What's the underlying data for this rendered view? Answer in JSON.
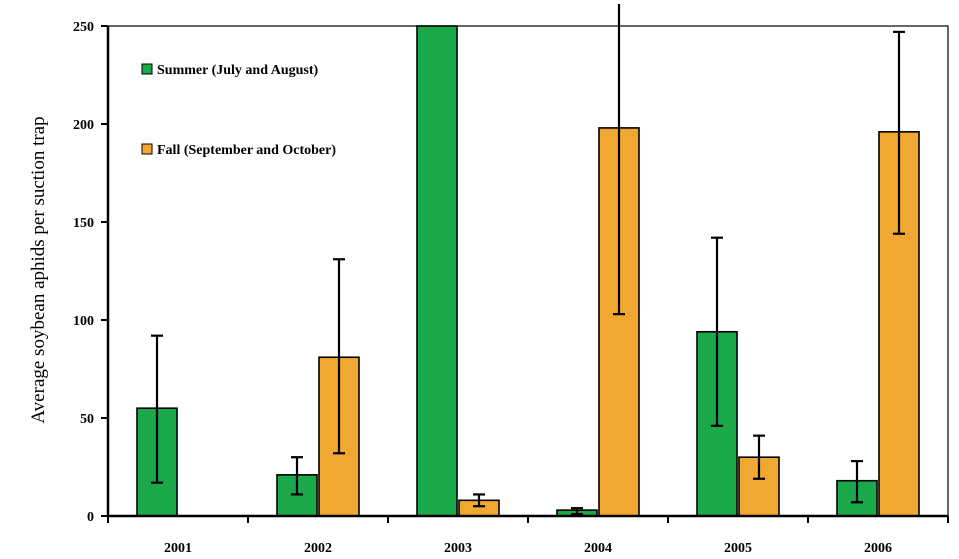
{
  "chart_data": {
    "type": "bar",
    "title": "",
    "xlabel": "",
    "ylabel": "Average soybean aphids per suction trap",
    "categories": [
      "2001",
      "2002",
      "2003",
      "2004",
      "2005",
      "2006"
    ],
    "ylim": [
      0,
      250
    ],
    "yticks": [
      0,
      50,
      100,
      150,
      200,
      250
    ],
    "grid": false,
    "legend_position": "top-left",
    "series": [
      {
        "name": "Summer (July and August)",
        "color": "#1aa84a",
        "values": [
          55,
          21,
          250,
          3,
          94,
          18
        ],
        "error_low": [
          17,
          11,
          250,
          1,
          46,
          7
        ],
        "error_high": [
          92,
          30,
          250,
          4,
          142,
          28
        ]
      },
      {
        "name": "Fall (September and October)",
        "color": "#f0a830",
        "values": [
          0,
          81,
          8,
          198,
          30,
          196
        ],
        "error_low": [
          0,
          32,
          5,
          103,
          19,
          144
        ],
        "error_high": [
          0,
          131,
          11,
          262,
          41,
          247
        ]
      }
    ]
  }
}
